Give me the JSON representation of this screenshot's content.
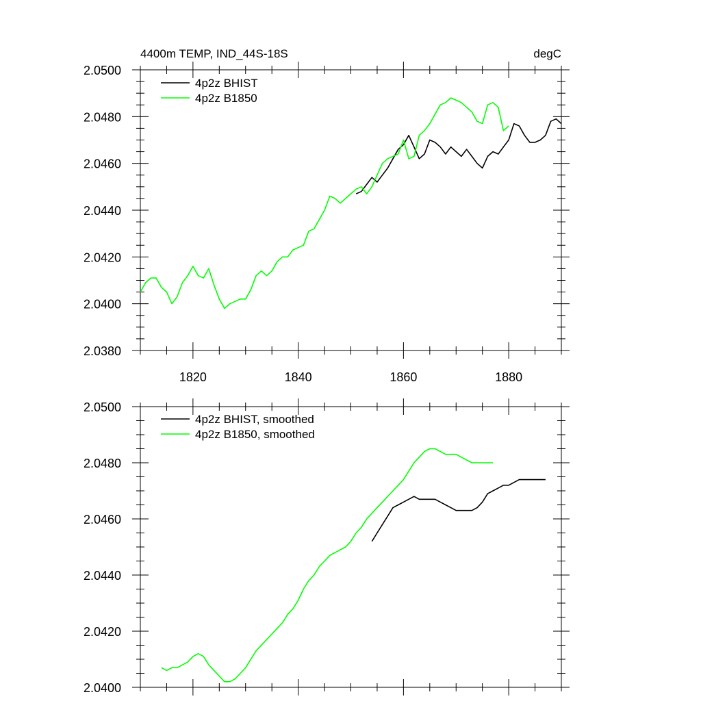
{
  "chart_data": [
    {
      "type": "line",
      "title": "4400m TEMP, IND_44S-18S",
      "units": "degC",
      "xlim": [
        1810,
        1890
      ],
      "ylim": [
        2.038,
        2.05
      ],
      "xticks": [
        1820,
        1840,
        1860,
        1880
      ],
      "xtick_labels": [
        "1820",
        "1840",
        "1860",
        "1880"
      ],
      "yticks": [
        2.038,
        2.04,
        2.042,
        2.044,
        2.046,
        2.048,
        2.05
      ],
      "ytick_labels": [
        "2.0380",
        "2.0400",
        "2.0420",
        "2.0440",
        "2.0460",
        "2.0480",
        "2.0500"
      ],
      "legend_position": "top-left",
      "series": [
        {
          "name": "4p2z BHIST",
          "color": "#000000",
          "x": [
            1851,
            1852,
            1853,
            1854,
            1855,
            1856,
            1857,
            1858,
            1859,
            1860,
            1861,
            1862,
            1863,
            1864,
            1865,
            1866,
            1867,
            1868,
            1869,
            1870,
            1871,
            1872,
            1873,
            1874,
            1875,
            1876,
            1877,
            1878,
            1879,
            1880,
            1881,
            1882,
            1883,
            1884,
            1885,
            1886,
            1887,
            1888,
            1889,
            1890
          ],
          "y": [
            2.0447,
            2.0448,
            2.0451,
            2.0454,
            2.0452,
            2.0455,
            2.0458,
            2.0462,
            2.0466,
            2.0468,
            2.0472,
            2.0467,
            2.0462,
            2.0464,
            2.047,
            2.0469,
            2.0467,
            2.0464,
            2.0467,
            2.0465,
            2.0463,
            2.0466,
            2.0463,
            2.046,
            2.0458,
            2.0463,
            2.0465,
            2.0464,
            2.0467,
            2.047,
            2.0477,
            2.0476,
            2.0472,
            2.0469,
            2.0469,
            2.047,
            2.0472,
            2.0478,
            2.0479,
            2.0477
          ]
        },
        {
          "name": "4p2z B1850",
          "color": "#00ff00",
          "x": [
            1810,
            1811,
            1812,
            1813,
            1814,
            1815,
            1816,
            1817,
            1818,
            1819,
            1820,
            1821,
            1822,
            1823,
            1824,
            1825,
            1826,
            1827,
            1828,
            1829,
            1830,
            1831,
            1832,
            1833,
            1834,
            1835,
            1836,
            1837,
            1838,
            1839,
            1840,
            1841,
            1842,
            1843,
            1844,
            1845,
            1846,
            1847,
            1848,
            1849,
            1850,
            1851,
            1852,
            1853,
            1854,
            1855,
            1856,
            1857,
            1858,
            1859,
            1860,
            1861,
            1862,
            1863,
            1864,
            1865,
            1866,
            1867,
            1868,
            1869,
            1870,
            1871,
            1872,
            1873,
            1874,
            1875,
            1876,
            1877,
            1878,
            1879,
            1880
          ],
          "y": [
            2.0405,
            2.0409,
            2.0411,
            2.0411,
            2.0407,
            2.0405,
            2.04,
            2.0403,
            2.0409,
            2.0412,
            2.0416,
            2.0412,
            2.0411,
            2.0415,
            2.0408,
            2.0402,
            2.0398,
            2.04,
            2.0401,
            2.0402,
            2.0402,
            2.0406,
            2.0412,
            2.0414,
            2.0412,
            2.0414,
            2.0418,
            2.042,
            2.042,
            2.0423,
            2.0424,
            2.0425,
            2.0431,
            2.0432,
            2.0436,
            2.044,
            2.0446,
            2.0445,
            2.0443,
            2.0445,
            2.0447,
            2.0449,
            2.045,
            2.0447,
            2.045,
            2.0455,
            2.046,
            2.0462,
            2.0463,
            2.0464,
            2.047,
            2.0462,
            2.0463,
            2.0472,
            2.0474,
            2.0477,
            2.0481,
            2.0485,
            2.0486,
            2.0488,
            2.0487,
            2.0486,
            2.0484,
            2.0482,
            2.0478,
            2.0477,
            2.0485,
            2.0486,
            2.0484,
            2.0474,
            2.0476
          ]
        }
      ]
    },
    {
      "type": "line",
      "title": "",
      "units": "",
      "xlim": [
        1810,
        1890
      ],
      "ylim": [
        2.04,
        2.05
      ],
      "xticks": [
        1820,
        1840,
        1860,
        1880
      ],
      "xtick_labels": [
        "",
        "",
        "",
        ""
      ],
      "yticks": [
        2.04,
        2.042,
        2.044,
        2.046,
        2.048,
        2.05
      ],
      "ytick_labels": [
        "2.0400",
        "2.0420",
        "2.0440",
        "2.0460",
        "2.0480",
        "2.0500"
      ],
      "legend_position": "top-left",
      "series": [
        {
          "name": "4p2z BHIST, smoothed",
          "color": "#000000",
          "x": [
            1854,
            1855,
            1856,
            1857,
            1858,
            1859,
            1860,
            1861,
            1862,
            1863,
            1864,
            1865,
            1866,
            1867,
            1868,
            1869,
            1870,
            1871,
            1872,
            1873,
            1874,
            1875,
            1876,
            1877,
            1878,
            1879,
            1880,
            1881,
            1882,
            1883,
            1884,
            1885,
            1886,
            1887
          ],
          "y": [
            2.0452,
            2.0455,
            2.0458,
            2.0461,
            2.0464,
            2.0465,
            2.0466,
            2.0467,
            2.0468,
            2.0467,
            2.0467,
            2.0467,
            2.0467,
            2.0466,
            2.0465,
            2.0464,
            2.0463,
            2.0463,
            2.0463,
            2.0463,
            2.0464,
            2.0466,
            2.0469,
            2.047,
            2.0471,
            2.0472,
            2.0472,
            2.0473,
            2.0474,
            2.0474,
            2.0474,
            2.0474,
            2.0474,
            2.0474
          ]
        },
        {
          "name": "4p2z B1850, smoothed",
          "color": "#00ff00",
          "x": [
            1814,
            1815,
            1816,
            1817,
            1818,
            1819,
            1820,
            1821,
            1822,
            1823,
            1824,
            1825,
            1826,
            1827,
            1828,
            1829,
            1830,
            1831,
            1832,
            1833,
            1834,
            1835,
            1836,
            1837,
            1838,
            1839,
            1840,
            1841,
            1842,
            1843,
            1844,
            1845,
            1846,
            1847,
            1848,
            1849,
            1850,
            1851,
            1852,
            1853,
            1854,
            1855,
            1856,
            1857,
            1858,
            1859,
            1860,
            1861,
            1862,
            1863,
            1864,
            1865,
            1866,
            1867,
            1868,
            1869,
            1870,
            1871,
            1872,
            1873,
            1874,
            1875,
            1876,
            1877
          ],
          "y": [
            2.0407,
            2.0406,
            2.0407,
            2.0407,
            2.0408,
            2.0409,
            2.0411,
            2.0412,
            2.0411,
            2.0408,
            2.0406,
            2.0404,
            2.0402,
            2.0402,
            2.0403,
            2.0405,
            2.0407,
            2.041,
            2.0413,
            2.0415,
            2.0417,
            2.0419,
            2.0421,
            2.0423,
            2.0426,
            2.0428,
            2.0431,
            2.0435,
            2.0438,
            2.044,
            2.0443,
            2.0445,
            2.0447,
            2.0448,
            2.0449,
            2.045,
            2.0452,
            2.0455,
            2.0457,
            2.046,
            2.0462,
            2.0464,
            2.0466,
            2.0468,
            2.047,
            2.0472,
            2.0474,
            2.0477,
            2.048,
            2.0482,
            2.0484,
            2.0485,
            2.0485,
            2.0484,
            2.0483,
            2.0483,
            2.0483,
            2.0482,
            2.0481,
            2.048,
            2.048,
            2.048,
            2.048,
            2.048
          ]
        }
      ]
    }
  ]
}
